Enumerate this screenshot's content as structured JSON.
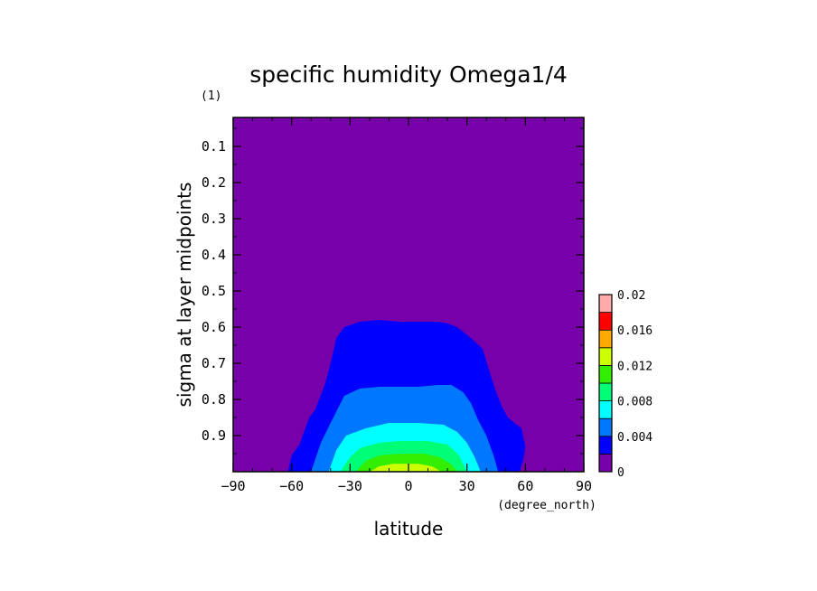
{
  "chart_data": {
    "type": "heatmap",
    "title": "specific humidity Omega1/4",
    "xlabel": "latitude",
    "ylabel": "sigma at layer midpoints",
    "x_unit": "(degree_north)",
    "y_unit": "(1)",
    "xlim": [
      -90,
      90
    ],
    "ylim": [
      1.0,
      0.02
    ],
    "y_reversed": true,
    "x_ticks": [
      -90,
      -60,
      -30,
      0,
      30,
      60,
      90
    ],
    "x_tick_labels": [
      "−90",
      "−60",
      "−30",
      "0",
      "30",
      "60",
      "90"
    ],
    "y_ticks": [
      0.1,
      0.2,
      0.3,
      0.4,
      0.5,
      0.6,
      0.7,
      0.8,
      0.9
    ],
    "y_tick_labels": [
      "0.1",
      "0.2",
      "0.3",
      "0.4",
      "0.5",
      "0.6",
      "0.7",
      "0.8",
      "0.9"
    ],
    "background_color": "#7700aa",
    "colorbar": {
      "levels": [
        0,
        0.002,
        0.004,
        0.006,
        0.008,
        0.01,
        0.012,
        0.014,
        0.016,
        0.018,
        0.02
      ],
      "colors": [
        "#7700aa",
        "#0000ff",
        "#0077ff",
        "#00ffff",
        "#00ff77",
        "#33ee00",
        "#ccff00",
        "#ffaa00",
        "#ff0000",
        "#ffaaaa"
      ],
      "tick_values": [
        0,
        0.004,
        0.008,
        0.012,
        0.016,
        0.02
      ],
      "tick_labels": [
        "0",
        "0.004",
        "0.008",
        "0.012",
        "0.016",
        "0.02"
      ]
    },
    "contours": [
      {
        "level": 0.002,
        "color": "#0000ff",
        "points": [
          [
            -62,
            1.0
          ],
          [
            -60,
            0.955
          ],
          [
            -56,
            0.925
          ],
          [
            -51,
            0.85
          ],
          [
            -48,
            0.83
          ],
          [
            -43,
            0.76
          ],
          [
            -40,
            0.7
          ],
          [
            -37,
            0.63
          ],
          [
            -33,
            0.6
          ],
          [
            -25,
            0.585
          ],
          [
            -15,
            0.58
          ],
          [
            -5,
            0.585
          ],
          [
            15,
            0.585
          ],
          [
            20,
            0.59
          ],
          [
            25,
            0.6
          ],
          [
            32,
            0.63
          ],
          [
            38,
            0.66
          ],
          [
            42,
            0.73
          ],
          [
            45,
            0.78
          ],
          [
            48,
            0.82
          ],
          [
            51,
            0.85
          ],
          [
            58,
            0.88
          ],
          [
            60,
            0.93
          ],
          [
            59,
            0.965
          ],
          [
            57,
            1.0
          ]
        ]
      },
      {
        "level": 0.004,
        "color": "#0077ff",
        "points": [
          [
            -50,
            1.0
          ],
          [
            -45,
            0.92
          ],
          [
            -40,
            0.865
          ],
          [
            -33,
            0.79
          ],
          [
            -25,
            0.77
          ],
          [
            -15,
            0.765
          ],
          [
            -5,
            0.765
          ],
          [
            5,
            0.765
          ],
          [
            15,
            0.76
          ],
          [
            22,
            0.76
          ],
          [
            28,
            0.78
          ],
          [
            32,
            0.81
          ],
          [
            36,
            0.86
          ],
          [
            40,
            0.9
          ],
          [
            44,
            0.96
          ],
          [
            46,
            1.0
          ]
        ]
      },
      {
        "level": 0.006,
        "color": "#00ffff",
        "points": [
          [
            -41,
            1.0
          ],
          [
            -37,
            0.94
          ],
          [
            -32,
            0.9
          ],
          [
            -22,
            0.88
          ],
          [
            -10,
            0.865
          ],
          [
            5,
            0.865
          ],
          [
            18,
            0.87
          ],
          [
            25,
            0.89
          ],
          [
            30,
            0.92
          ],
          [
            34,
            0.96
          ],
          [
            37,
            1.0
          ]
        ]
      },
      {
        "level": 0.008,
        "color": "#00ff77",
        "points": [
          [
            -35,
            1.0
          ],
          [
            -30,
            0.96
          ],
          [
            -25,
            0.935
          ],
          [
            -15,
            0.92
          ],
          [
            -5,
            0.915
          ],
          [
            10,
            0.915
          ],
          [
            20,
            0.925
          ],
          [
            26,
            0.955
          ],
          [
            30,
            1.0
          ]
        ]
      },
      {
        "level": 0.01,
        "color": "#33ee00",
        "points": [
          [
            -27,
            1.0
          ],
          [
            -22,
            0.97
          ],
          [
            -15,
            0.955
          ],
          [
            -5,
            0.95
          ],
          [
            8,
            0.95
          ],
          [
            16,
            0.96
          ],
          [
            22,
            0.98
          ],
          [
            25,
            1.0
          ]
        ]
      },
      {
        "level": 0.012,
        "color": "#ccff00",
        "points": [
          [
            -20,
            1.0
          ],
          [
            -15,
            0.985
          ],
          [
            -8,
            0.978
          ],
          [
            5,
            0.978
          ],
          [
            12,
            0.985
          ],
          [
            17,
            1.0
          ]
        ]
      }
    ]
  }
}
